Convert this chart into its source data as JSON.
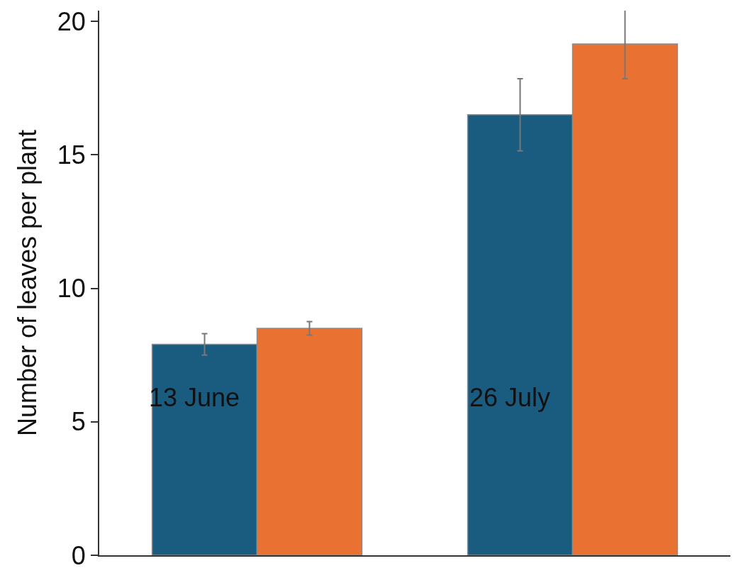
{
  "chart_data": {
    "type": "bar",
    "ylabel": "Number of leaves per plant",
    "categories": [
      "13 June",
      "26 July"
    ],
    "series": [
      {
        "color": "#1a5c80",
        "values": [
          7.9,
          16.5
        ],
        "errors": [
          0.4,
          1.35
        ]
      },
      {
        "color": "#e97132",
        "values": [
          8.5,
          19.15
        ],
        "errors": [
          0.25,
          1.3
        ]
      }
    ],
    "ylim": [
      0,
      20.4
    ],
    "yticks": [
      0,
      5,
      10,
      15,
      20
    ],
    "grid": false
  }
}
